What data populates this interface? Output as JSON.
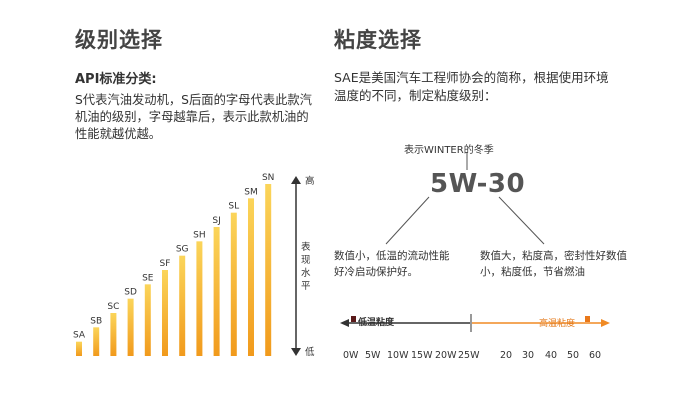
{
  "left": {
    "title": "级别选择",
    "subtitle": "API标准分类:",
    "description": "S代表汽油发动机，S后面的字母代表此款汽机油的级别，字母越靠后，表示此款机油的性能就越优越。",
    "axis_high": "高",
    "axis_low": "低",
    "axis_caption": [
      "表",
      "现",
      "水",
      "平"
    ]
  },
  "chart_data": {
    "type": "bar",
    "categories": [
      "SA",
      "SB",
      "SC",
      "SD",
      "SE",
      "SF",
      "SG",
      "SH",
      "SJ",
      "SL",
      "SM",
      "SN"
    ],
    "values": [
      1,
      2,
      3,
      4,
      5,
      6,
      7,
      8,
      9,
      10,
      11,
      12
    ],
    "ylim": [
      0,
      12
    ],
    "colors": {
      "bar_top": "#fbd55a",
      "bar_bottom": "#f19a1c"
    },
    "grid": false
  },
  "right": {
    "title": "粘度选择",
    "description": "SAE是美国汽车工程师协会的简称，根据使用环境温度的不同，制定粘度级别：",
    "winter_label": "表示WINTER的冬季",
    "grade": "5W-30",
    "note_left": "数值小，低温的流动性能好冷启动保护好。",
    "note_right": "数值大，粘度高，密封性好数值小，粘度低，节省燃油",
    "legend_low": "低温粘度",
    "legend_high": "高温粘度",
    "low_ticks": [
      "0W",
      "5W",
      "10W",
      "15W",
      "20W",
      "25W"
    ],
    "high_ticks": [
      "20",
      "30",
      "40",
      "50",
      "60"
    ],
    "colors": {
      "low": "#333333",
      "high": "#f08a24",
      "legend_high_mark": "#e9781a"
    }
  }
}
